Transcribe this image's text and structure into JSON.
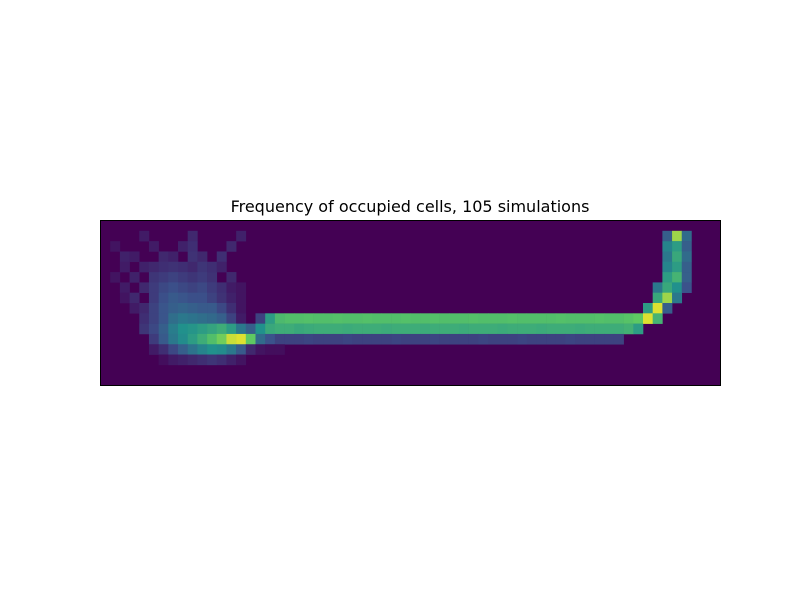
{
  "chart_data": {
    "type": "heatmap",
    "title": "Frequency of occupied cells, 105 simulations",
    "xlabel": "",
    "ylabel": "",
    "axis_ticks": "hidden",
    "grid": false,
    "colormap": "viridis",
    "colormap_stops": [
      "#440154",
      "#3b528b",
      "#21918c",
      "#5ec962",
      "#fde725"
    ],
    "value_range": [
      0,
      1
    ],
    "n_rows": 16,
    "n_cols": 64,
    "cells": [
      [
        1,
        4,
        0.08
      ],
      [
        1,
        9,
        0.12
      ],
      [
        1,
        14,
        0.1
      ],
      [
        1,
        58,
        0.3
      ],
      [
        1,
        59,
        0.85
      ],
      [
        1,
        60,
        0.35
      ],
      [
        2,
        1,
        0.06
      ],
      [
        2,
        5,
        0.08
      ],
      [
        2,
        8,
        0.1
      ],
      [
        2,
        9,
        0.14
      ],
      [
        2,
        13,
        0.12
      ],
      [
        2,
        58,
        0.45
      ],
      [
        2,
        59,
        0.55
      ],
      [
        2,
        60,
        0.3
      ],
      [
        3,
        2,
        0.1
      ],
      [
        3,
        3,
        0.08
      ],
      [
        3,
        6,
        0.12
      ],
      [
        3,
        7,
        0.1
      ],
      [
        3,
        9,
        0.15
      ],
      [
        3,
        10,
        0.12
      ],
      [
        3,
        12,
        0.14
      ],
      [
        3,
        58,
        0.4
      ],
      [
        3,
        59,
        0.6
      ],
      [
        3,
        60,
        0.35
      ],
      [
        4,
        2,
        0.08
      ],
      [
        4,
        4,
        0.1
      ],
      [
        4,
        5,
        0.12
      ],
      [
        4,
        6,
        0.14
      ],
      [
        4,
        7,
        0.15
      ],
      [
        4,
        8,
        0.14
      ],
      [
        4,
        9,
        0.12
      ],
      [
        4,
        10,
        0.16
      ],
      [
        4,
        11,
        0.14
      ],
      [
        4,
        12,
        0.1
      ],
      [
        4,
        58,
        0.45
      ],
      [
        4,
        59,
        0.55
      ],
      [
        4,
        60,
        0.3
      ],
      [
        5,
        1,
        0.06
      ],
      [
        5,
        3,
        0.1
      ],
      [
        5,
        5,
        0.16
      ],
      [
        5,
        6,
        0.18
      ],
      [
        5,
        7,
        0.2
      ],
      [
        5,
        8,
        0.18
      ],
      [
        5,
        9,
        0.16
      ],
      [
        5,
        10,
        0.18
      ],
      [
        5,
        11,
        0.15
      ],
      [
        5,
        13,
        0.12
      ],
      [
        5,
        58,
        0.55
      ],
      [
        5,
        59,
        0.65
      ],
      [
        5,
        60,
        0.3
      ],
      [
        6,
        2,
        0.08
      ],
      [
        6,
        4,
        0.12
      ],
      [
        6,
        5,
        0.18
      ],
      [
        6,
        6,
        0.22
      ],
      [
        6,
        7,
        0.24
      ],
      [
        6,
        8,
        0.22
      ],
      [
        6,
        9,
        0.2
      ],
      [
        6,
        10,
        0.22
      ],
      [
        6,
        11,
        0.18
      ],
      [
        6,
        12,
        0.14
      ],
      [
        6,
        13,
        0.08
      ],
      [
        6,
        14,
        0.06
      ],
      [
        6,
        57,
        0.4
      ],
      [
        6,
        58,
        0.6
      ],
      [
        6,
        59,
        0.5
      ],
      [
        6,
        60,
        0.25
      ],
      [
        7,
        2,
        0.06
      ],
      [
        7,
        3,
        0.12
      ],
      [
        7,
        5,
        0.18
      ],
      [
        7,
        6,
        0.24
      ],
      [
        7,
        7,
        0.28
      ],
      [
        7,
        8,
        0.26
      ],
      [
        7,
        9,
        0.24
      ],
      [
        7,
        10,
        0.24
      ],
      [
        7,
        11,
        0.2
      ],
      [
        7,
        12,
        0.15
      ],
      [
        7,
        13,
        0.1
      ],
      [
        7,
        14,
        0.06
      ],
      [
        7,
        57,
        0.6
      ],
      [
        7,
        58,
        0.85
      ],
      [
        7,
        59,
        0.4
      ],
      [
        8,
        3,
        0.08
      ],
      [
        8,
        4,
        0.12
      ],
      [
        8,
        5,
        0.2
      ],
      [
        8,
        6,
        0.26
      ],
      [
        8,
        7,
        0.3
      ],
      [
        8,
        8,
        0.32
      ],
      [
        8,
        9,
        0.3
      ],
      [
        8,
        10,
        0.28
      ],
      [
        8,
        11,
        0.28
      ],
      [
        8,
        12,
        0.22
      ],
      [
        8,
        13,
        0.14
      ],
      [
        8,
        14,
        0.06
      ],
      [
        8,
        56,
        0.55
      ],
      [
        8,
        57,
        0.95
      ],
      [
        8,
        58,
        0.3
      ],
      [
        9,
        4,
        0.14
      ],
      [
        9,
        5,
        0.2
      ],
      [
        9,
        6,
        0.26
      ],
      [
        9,
        7,
        0.36
      ],
      [
        9,
        8,
        0.4
      ],
      [
        9,
        9,
        0.38
      ],
      [
        9,
        10,
        0.36
      ],
      [
        9,
        11,
        0.34
      ],
      [
        9,
        12,
        0.3
      ],
      [
        9,
        13,
        0.2
      ],
      [
        9,
        14,
        0.08
      ],
      [
        9,
        16,
        0.2
      ],
      [
        9,
        17,
        0.55
      ],
      [
        9,
        18,
        0.68
      ],
      [
        9,
        19,
        0.7
      ],
      [
        9,
        20,
        0.7
      ],
      [
        9,
        21,
        0.71
      ],
      [
        9,
        22,
        0.7
      ],
      [
        9,
        23,
        0.7
      ],
      [
        9,
        24,
        0.71
      ],
      [
        9,
        25,
        0.7
      ],
      [
        9,
        26,
        0.7
      ],
      [
        9,
        27,
        0.71
      ],
      [
        9,
        28,
        0.7
      ],
      [
        9,
        29,
        0.7
      ],
      [
        9,
        30,
        0.7
      ],
      [
        9,
        31,
        0.71
      ],
      [
        9,
        32,
        0.7
      ],
      [
        9,
        33,
        0.7
      ],
      [
        9,
        34,
        0.71
      ],
      [
        9,
        35,
        0.7
      ],
      [
        9,
        36,
        0.7
      ],
      [
        9,
        37,
        0.7
      ],
      [
        9,
        38,
        0.71
      ],
      [
        9,
        39,
        0.7
      ],
      [
        9,
        40,
        0.7
      ],
      [
        9,
        41,
        0.7
      ],
      [
        9,
        42,
        0.71
      ],
      [
        9,
        43,
        0.7
      ],
      [
        9,
        44,
        0.7
      ],
      [
        9,
        45,
        0.7
      ],
      [
        9,
        46,
        0.7
      ],
      [
        9,
        47,
        0.71
      ],
      [
        9,
        48,
        0.7
      ],
      [
        9,
        49,
        0.7
      ],
      [
        9,
        50,
        0.7
      ],
      [
        9,
        51,
        0.71
      ],
      [
        9,
        52,
        0.7
      ],
      [
        9,
        53,
        0.7
      ],
      [
        9,
        54,
        0.72
      ],
      [
        9,
        55,
        0.75
      ],
      [
        9,
        56,
        0.95
      ],
      [
        9,
        57,
        0.65
      ],
      [
        10,
        4,
        0.16
      ],
      [
        10,
        5,
        0.22
      ],
      [
        10,
        6,
        0.3
      ],
      [
        10,
        7,
        0.42
      ],
      [
        10,
        8,
        0.5
      ],
      [
        10,
        9,
        0.52
      ],
      [
        10,
        10,
        0.55
      ],
      [
        10,
        11,
        0.58
      ],
      [
        10,
        12,
        0.62
      ],
      [
        10,
        13,
        0.55
      ],
      [
        10,
        14,
        0.4
      ],
      [
        10,
        15,
        0.3
      ],
      [
        10,
        16,
        0.5
      ],
      [
        10,
        17,
        0.6
      ],
      [
        10,
        18,
        0.62
      ],
      [
        10,
        19,
        0.62
      ],
      [
        10,
        20,
        0.6
      ],
      [
        10,
        21,
        0.61
      ],
      [
        10,
        22,
        0.62
      ],
      [
        10,
        23,
        0.62
      ],
      [
        10,
        24,
        0.62
      ],
      [
        10,
        25,
        0.61
      ],
      [
        10,
        26,
        0.62
      ],
      [
        10,
        27,
        0.62
      ],
      [
        10,
        28,
        0.62
      ],
      [
        10,
        29,
        0.61
      ],
      [
        10,
        30,
        0.62
      ],
      [
        10,
        31,
        0.62
      ],
      [
        10,
        32,
        0.62
      ],
      [
        10,
        33,
        0.61
      ],
      [
        10,
        34,
        0.62
      ],
      [
        10,
        35,
        0.62
      ],
      [
        10,
        36,
        0.62
      ],
      [
        10,
        37,
        0.61
      ],
      [
        10,
        38,
        0.62
      ],
      [
        10,
        39,
        0.62
      ],
      [
        10,
        40,
        0.62
      ],
      [
        10,
        41,
        0.61
      ],
      [
        10,
        42,
        0.62
      ],
      [
        10,
        43,
        0.62
      ],
      [
        10,
        44,
        0.62
      ],
      [
        10,
        45,
        0.61
      ],
      [
        10,
        46,
        0.62
      ],
      [
        10,
        47,
        0.62
      ],
      [
        10,
        48,
        0.62
      ],
      [
        10,
        49,
        0.61
      ],
      [
        10,
        50,
        0.62
      ],
      [
        10,
        51,
        0.62
      ],
      [
        10,
        52,
        0.62
      ],
      [
        10,
        53,
        0.62
      ],
      [
        10,
        54,
        0.64
      ],
      [
        10,
        55,
        0.55
      ],
      [
        11,
        5,
        0.18
      ],
      [
        11,
        6,
        0.28
      ],
      [
        11,
        7,
        0.4
      ],
      [
        11,
        8,
        0.48
      ],
      [
        11,
        9,
        0.55
      ],
      [
        11,
        10,
        0.62
      ],
      [
        11,
        11,
        0.7
      ],
      [
        11,
        12,
        0.78
      ],
      [
        11,
        13,
        0.92
      ],
      [
        11,
        14,
        0.95
      ],
      [
        11,
        15,
        0.75
      ],
      [
        11,
        16,
        0.35
      ],
      [
        11,
        17,
        0.25
      ],
      [
        11,
        18,
        0.2
      ],
      [
        11,
        19,
        0.2
      ],
      [
        11,
        20,
        0.2
      ],
      [
        11,
        21,
        0.21
      ],
      [
        11,
        22,
        0.2
      ],
      [
        11,
        23,
        0.2
      ],
      [
        11,
        24,
        0.2
      ],
      [
        11,
        25,
        0.21
      ],
      [
        11,
        26,
        0.2
      ],
      [
        11,
        27,
        0.2
      ],
      [
        11,
        28,
        0.2
      ],
      [
        11,
        29,
        0.2
      ],
      [
        11,
        30,
        0.21
      ],
      [
        11,
        31,
        0.2
      ],
      [
        11,
        32,
        0.2
      ],
      [
        11,
        33,
        0.2
      ],
      [
        11,
        34,
        0.21
      ],
      [
        11,
        35,
        0.2
      ],
      [
        11,
        36,
        0.2
      ],
      [
        11,
        37,
        0.2
      ],
      [
        11,
        38,
        0.2
      ],
      [
        11,
        39,
        0.21
      ],
      [
        11,
        40,
        0.2
      ],
      [
        11,
        41,
        0.2
      ],
      [
        11,
        42,
        0.2
      ],
      [
        11,
        43,
        0.21
      ],
      [
        11,
        44,
        0.2
      ],
      [
        11,
        45,
        0.2
      ],
      [
        11,
        46,
        0.2
      ],
      [
        11,
        47,
        0.2
      ],
      [
        11,
        48,
        0.21
      ],
      [
        11,
        49,
        0.2
      ],
      [
        11,
        50,
        0.2
      ],
      [
        11,
        51,
        0.2
      ],
      [
        11,
        52,
        0.2
      ],
      [
        11,
        53,
        0.2
      ],
      [
        12,
        5,
        0.08
      ],
      [
        12,
        6,
        0.14
      ],
      [
        12,
        7,
        0.22
      ],
      [
        12,
        8,
        0.3
      ],
      [
        12,
        9,
        0.38
      ],
      [
        12,
        10,
        0.45
      ],
      [
        12,
        11,
        0.5
      ],
      [
        12,
        12,
        0.48
      ],
      [
        12,
        13,
        0.4
      ],
      [
        12,
        14,
        0.28
      ],
      [
        12,
        15,
        0.12
      ],
      [
        12,
        16,
        0.06
      ],
      [
        12,
        17,
        0.04
      ],
      [
        12,
        18,
        0.04
      ],
      [
        13,
        6,
        0.04
      ],
      [
        13,
        7,
        0.08
      ],
      [
        13,
        8,
        0.1
      ],
      [
        13,
        9,
        0.12
      ],
      [
        13,
        10,
        0.14
      ],
      [
        13,
        11,
        0.16
      ],
      [
        13,
        12,
        0.14
      ],
      [
        13,
        13,
        0.1
      ],
      [
        13,
        14,
        0.06
      ]
    ]
  }
}
